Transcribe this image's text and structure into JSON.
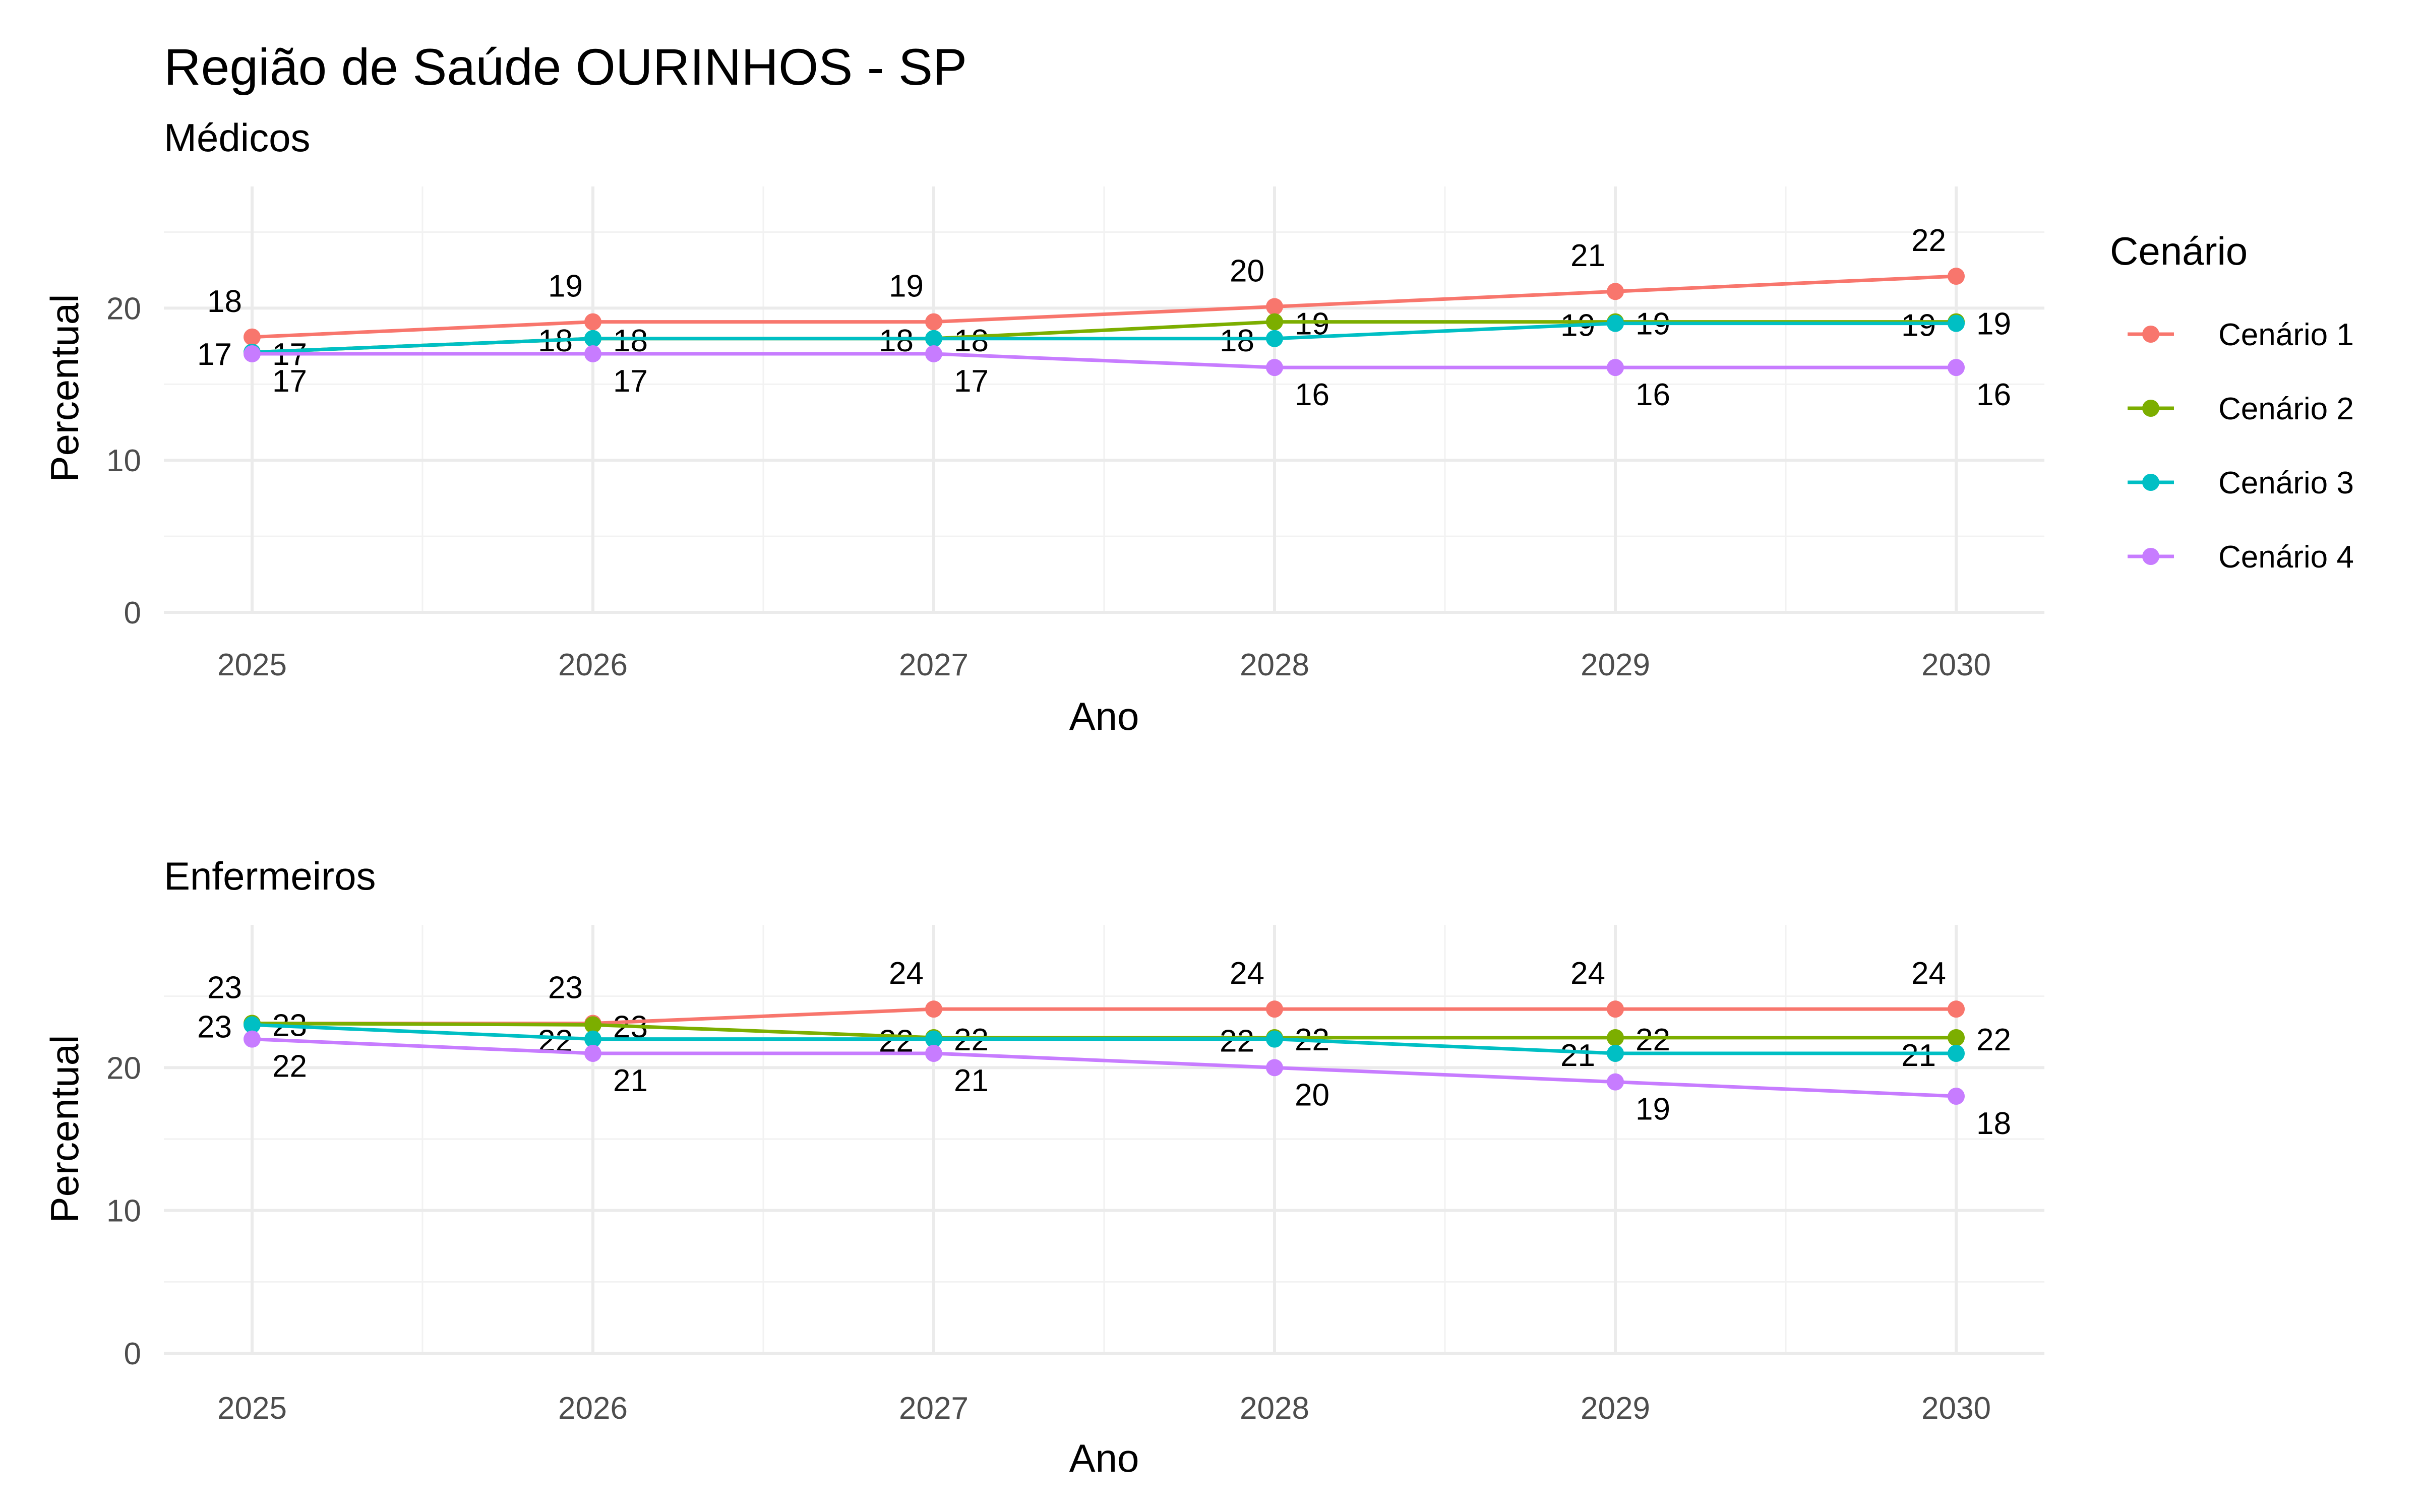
{
  "title": "Região de Saúde OURINHOS - SP",
  "legend": {
    "title": "Cenário",
    "items": [
      {
        "label": "Cenário 1",
        "color": "#F8766D"
      },
      {
        "label": "Cenário 2",
        "color": "#7CAE00"
      },
      {
        "label": "Cenário 3",
        "color": "#00BFC4"
      },
      {
        "label": "Cenário 4",
        "color": "#C77CFF"
      }
    ]
  },
  "chart_data": [
    {
      "type": "line",
      "subtitle": "Médicos",
      "xlabel": "Ano",
      "ylabel": "Percentual",
      "x": [
        2025,
        2026,
        2027,
        2028,
        2029,
        2030
      ],
      "x_ticks": [
        "2025",
        "2026",
        "2027",
        "2028",
        "2029",
        "2030"
      ],
      "y_ticks": [
        0,
        10,
        20
      ],
      "ylim": [
        0,
        28
      ],
      "grid": true,
      "series": [
        {
          "name": "Cenário 1",
          "color": "#F8766D",
          "values": [
            18.1,
            19.1,
            19.1,
            20.1,
            21.1,
            22.1
          ],
          "labels": [
            "18",
            "19",
            "19",
            "20",
            "21",
            "22"
          ]
        },
        {
          "name": "Cenário 2",
          "color": "#7CAE00",
          "values": [
            17.1,
            18.0,
            18.0,
            19.1,
            19.1,
            19.1
          ],
          "labels": [
            "17",
            "18",
            "18",
            "19",
            "19",
            "19"
          ]
        },
        {
          "name": "Cenário 3",
          "color": "#00BFC4",
          "values": [
            17.1,
            18.0,
            18.0,
            18.0,
            19.0,
            19.0
          ],
          "labels": [
            "17",
            "18",
            "18",
            "18",
            "19",
            "19"
          ]
        },
        {
          "name": "Cenário 4",
          "color": "#C77CFF",
          "values": [
            17.0,
            17.0,
            17.0,
            16.1,
            16.1,
            16.1
          ],
          "labels": [
            "17",
            "17",
            "17",
            "16",
            "16",
            "16"
          ]
        }
      ]
    },
    {
      "type": "line",
      "subtitle": "Enfermeiros",
      "xlabel": "Ano",
      "ylabel": "Percentual",
      "x": [
        2025,
        2026,
        2027,
        2028,
        2029,
        2030
      ],
      "x_ticks": [
        "2025",
        "2026",
        "2027",
        "2028",
        "2029",
        "2030"
      ],
      "y_ticks": [
        0,
        10,
        20
      ],
      "ylim": [
        0,
        30
      ],
      "grid": true,
      "series": [
        {
          "name": "Cenário 1",
          "color": "#F8766D",
          "values": [
            23.1,
            23.1,
            24.1,
            24.1,
            24.1,
            24.1
          ],
          "labels": [
            "23",
            "23",
            "24",
            "24",
            "24",
            "24"
          ]
        },
        {
          "name": "Cenário 2",
          "color": "#7CAE00",
          "values": [
            23.1,
            23.0,
            22.1,
            22.1,
            22.1,
            22.1
          ],
          "labels": [
            "23",
            "23",
            "22",
            "22",
            "22",
            "22"
          ]
        },
        {
          "name": "Cenário 3",
          "color": "#00BFC4",
          "values": [
            23.0,
            22.0,
            22.0,
            22.0,
            21.0,
            21.0
          ],
          "labels": [
            "23",
            "22",
            "22",
            "22",
            "21",
            "21"
          ]
        },
        {
          "name": "Cenário 4",
          "color": "#C77CFF",
          "values": [
            22.0,
            21.0,
            21.0,
            20.0,
            19.0,
            18.0
          ],
          "labels": [
            "22",
            "21",
            "21",
            "20",
            "19",
            "18"
          ]
        }
      ]
    }
  ]
}
